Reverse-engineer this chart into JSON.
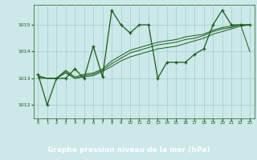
{
  "title": "Graphe pression niveau de la mer (hPa)",
  "bg_color": "#cce8e8",
  "plot_bg": "#cce8e8",
  "label_bg": "#2d6b2d",
  "label_fg": "#ffffff",
  "line_color": "#1a5c1a",
  "grid_color": "#9fcfcf",
  "ylim": [
    1011.5,
    1015.75
  ],
  "xlim": [
    -0.5,
    23.5
  ],
  "yticks": [
    1012,
    1013,
    1014,
    1015
  ],
  "xticks": [
    0,
    1,
    2,
    3,
    4,
    5,
    6,
    7,
    8,
    9,
    10,
    11,
    12,
    13,
    14,
    15,
    16,
    17,
    18,
    19,
    20,
    21,
    22,
    23
  ],
  "series1_x": [
    0,
    1,
    2,
    3,
    4,
    5,
    6,
    7,
    8,
    9,
    10,
    11,
    12,
    13,
    14,
    15,
    16,
    17,
    18,
    19,
    20,
    21,
    22,
    23
  ],
  "series1_y": [
    1013.15,
    1012.0,
    1013.0,
    1013.0,
    1013.35,
    1013.0,
    1014.2,
    1013.05,
    1015.55,
    1015.0,
    1014.7,
    1015.0,
    1015.0,
    1013.0,
    1013.6,
    1013.6,
    1013.6,
    1013.9,
    1014.1,
    1015.0,
    1015.55,
    1015.0,
    1015.0,
    1015.0
  ],
  "series2_x": [
    0,
    1,
    2,
    3,
    4,
    5,
    6,
    7,
    8,
    9,
    10,
    11,
    12,
    13,
    14,
    15,
    16,
    17,
    18,
    19,
    20,
    21,
    22,
    23
  ],
  "series2_y": [
    1013.0,
    1013.0,
    1013.0,
    1013.2,
    1013.0,
    1013.05,
    1013.1,
    1013.25,
    1013.45,
    1013.65,
    1013.8,
    1013.9,
    1014.0,
    1014.1,
    1014.15,
    1014.2,
    1014.3,
    1014.4,
    1014.5,
    1014.65,
    1014.75,
    1014.85,
    1014.95,
    1015.0
  ],
  "series3_x": [
    0,
    1,
    2,
    3,
    4,
    5,
    6,
    7,
    8,
    9,
    10,
    11,
    12,
    13,
    14,
    15,
    16,
    17,
    18,
    19,
    20,
    21,
    22,
    23
  ],
  "series3_y": [
    1013.05,
    1013.0,
    1013.0,
    1013.25,
    1013.0,
    1013.1,
    1013.15,
    1013.3,
    1013.55,
    1013.75,
    1013.95,
    1014.05,
    1014.15,
    1014.25,
    1014.3,
    1014.35,
    1014.45,
    1014.5,
    1014.6,
    1014.75,
    1014.85,
    1014.9,
    1015.0,
    1015.0
  ],
  "series4_x": [
    0,
    1,
    2,
    3,
    4,
    5,
    6,
    7,
    8,
    9,
    10,
    11,
    12,
    13,
    14,
    15,
    16,
    17,
    18,
    19,
    20,
    21,
    22,
    23
  ],
  "series4_y": [
    1013.1,
    1013.0,
    1013.0,
    1013.3,
    1013.05,
    1013.15,
    1013.2,
    1013.35,
    1013.65,
    1013.85,
    1014.05,
    1014.15,
    1014.25,
    1014.35,
    1014.4,
    1014.45,
    1014.55,
    1014.6,
    1014.65,
    1014.8,
    1014.9,
    1014.95,
    1015.0,
    1014.0
  ]
}
